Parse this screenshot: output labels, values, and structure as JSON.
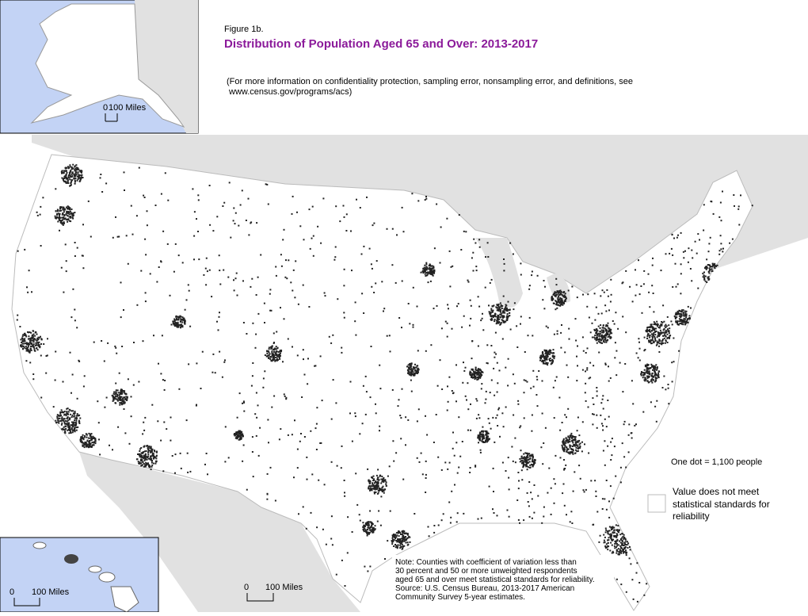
{
  "header": {
    "figure": "Figure 1b.",
    "title": "Distribution of Population Aged 65 and Over: 2013-2017",
    "info": [
      "(For more information on confidentiality protection, sampling error, nonsampling error, and definitions, see",
      "www.census.gov/programs/acs)"
    ]
  },
  "scales": {
    "alaska": {
      "start": "0",
      "end": "100 Miles"
    },
    "hawaii": {
      "start": "0",
      "end": "100 Miles"
    },
    "main": {
      "start": "0",
      "end": "100 Miles"
    }
  },
  "legend": {
    "dot": "One dot = 1,100 people",
    "unreliable": [
      "Value does not meet",
      "statistical standards for",
      "reliability"
    ]
  },
  "note": [
    "Note: Counties with coefficient of variation less than",
    "30 percent and 50 or more unweighted respondents",
    "aged 65 and over meet statistical standards for reliability.",
    "Source: U.S. Census Bureau, 2013-2017 American",
    "Community Survey 5-year estimates."
  ]
}
